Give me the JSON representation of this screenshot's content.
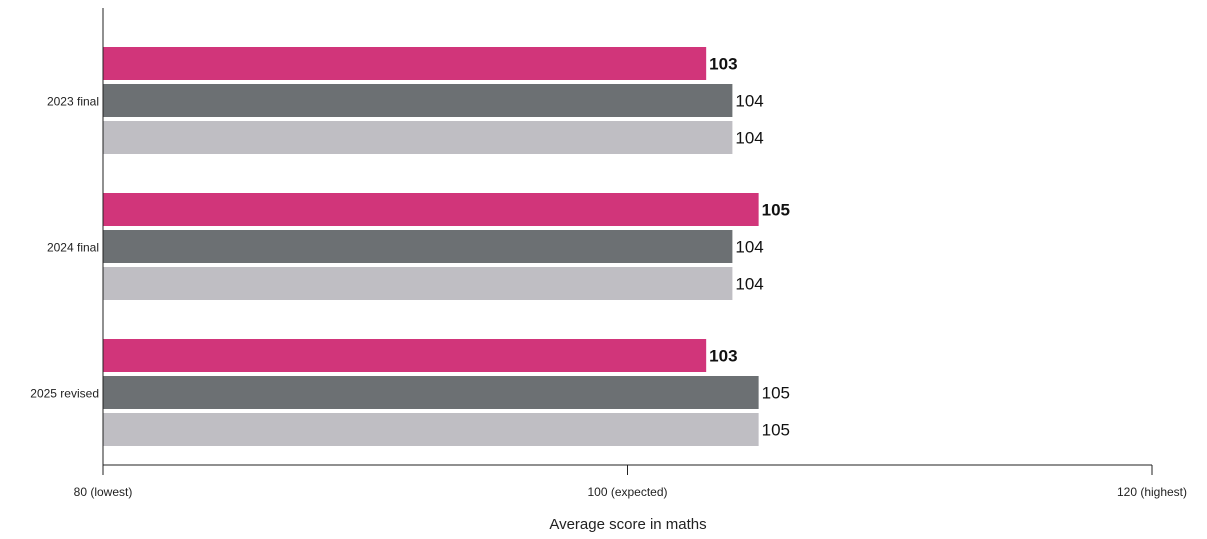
{
  "chart_data": {
    "type": "bar",
    "orientation": "horizontal",
    "categories": [
      "2023 final",
      "2024 final",
      "2025 revised"
    ],
    "series": [
      {
        "values": [
          103,
          105,
          103
        ],
        "color": "#d1357a",
        "label_style": "bold"
      },
      {
        "values": [
          104,
          104,
          105
        ],
        "color": "#6c7073",
        "label_style": "normal"
      },
      {
        "values": [
          104,
          104,
          105
        ],
        "color": "#bfbec3",
        "label_style": "normal"
      }
    ],
    "xlim": [
      80,
      120
    ],
    "xticks": [
      {
        "value": 80,
        "label": "80 (lowest)"
      },
      {
        "value": 100,
        "label": "100 (expected)"
      },
      {
        "value": 120,
        "label": "120 (highest)"
      }
    ],
    "xlabel": "Average score in maths",
    "ylabel": "",
    "title": "",
    "grid": false,
    "legend": "none"
  }
}
